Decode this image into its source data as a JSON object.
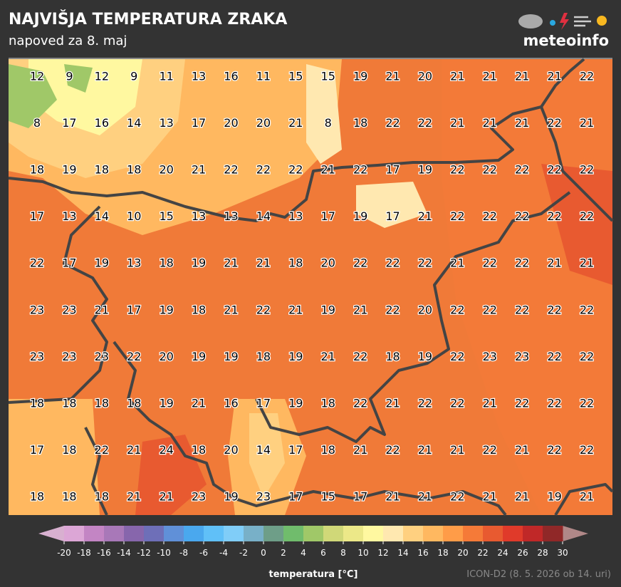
{
  "header": {
    "title": "NAJVIŠJA TEMPERATURA ZRAKA",
    "subtitle": "napoved za 8. maj",
    "logo": "meteoinfo"
  },
  "grid": {
    "rows": [
      [
        12,
        9,
        12,
        9,
        11,
        13,
        16,
        11,
        15,
        15,
        19,
        21,
        20,
        21,
        21,
        21,
        21,
        22
      ],
      [
        8,
        17,
        16,
        14,
        13,
        17,
        20,
        20,
        21,
        8,
        18,
        22,
        22,
        21,
        21,
        21,
        22,
        21
      ],
      [
        18,
        19,
        18,
        18,
        20,
        21,
        22,
        22,
        22,
        21,
        22,
        17,
        19,
        22,
        22,
        22,
        22,
        22
      ],
      [
        17,
        13,
        14,
        10,
        15,
        13,
        13,
        14,
        13,
        17,
        19,
        17,
        21,
        22,
        22,
        22,
        22,
        22
      ],
      [
        22,
        17,
        19,
        13,
        18,
        19,
        21,
        21,
        18,
        20,
        22,
        22,
        22,
        21,
        22,
        22,
        21,
        21
      ],
      [
        23,
        23,
        21,
        17,
        19,
        18,
        21,
        22,
        21,
        19,
        21,
        22,
        20,
        22,
        22,
        22,
        22,
        22
      ],
      [
        23,
        23,
        23,
        22,
        20,
        19,
        19,
        18,
        19,
        21,
        22,
        18,
        19,
        22,
        23,
        23,
        22,
        22
      ],
      [
        18,
        18,
        18,
        18,
        19,
        21,
        16,
        17,
        19,
        18,
        22,
        21,
        22,
        22,
        21,
        22,
        22,
        22
      ],
      [
        17,
        18,
        22,
        21,
        24,
        18,
        20,
        14,
        17,
        18,
        21,
        22,
        21,
        21,
        22,
        21,
        22,
        22
      ],
      [
        18,
        18,
        18,
        21,
        21,
        23,
        19,
        23,
        17,
        15,
        17,
        21,
        21,
        22,
        21,
        21,
        19,
        21
      ]
    ]
  },
  "colorbar": {
    "label": "temperatura [°C]",
    "ticks": [
      -20,
      -18,
      -16,
      -14,
      -12,
      -10,
      -8,
      -6,
      -4,
      -2,
      0,
      2,
      4,
      6,
      8,
      10,
      12,
      14,
      16,
      18,
      20,
      22,
      24,
      26,
      28,
      30
    ],
    "colors": [
      "#dca6d6",
      "#c385c4",
      "#a878b8",
      "#8766ac",
      "#6e6fb8",
      "#6090d8",
      "#4aa8ee",
      "#60c0f8",
      "#80cdf8",
      "#78b0c8",
      "#6e9e88",
      "#70bc6c",
      "#a0c868",
      "#d0d878",
      "#ece888",
      "#fff8a0",
      "#ffe8b0",
      "#ffd080",
      "#ffb860",
      "#ff9c48",
      "#f57a38",
      "#e85a30",
      "#e03a2a",
      "#c02828",
      "#902828"
    ],
    "under_color": "#d8b0d0",
    "over_color": "#b08888"
  },
  "footer": {
    "source": "ICON-D2 (8. 5. 2026 ob 14. uri)"
  }
}
